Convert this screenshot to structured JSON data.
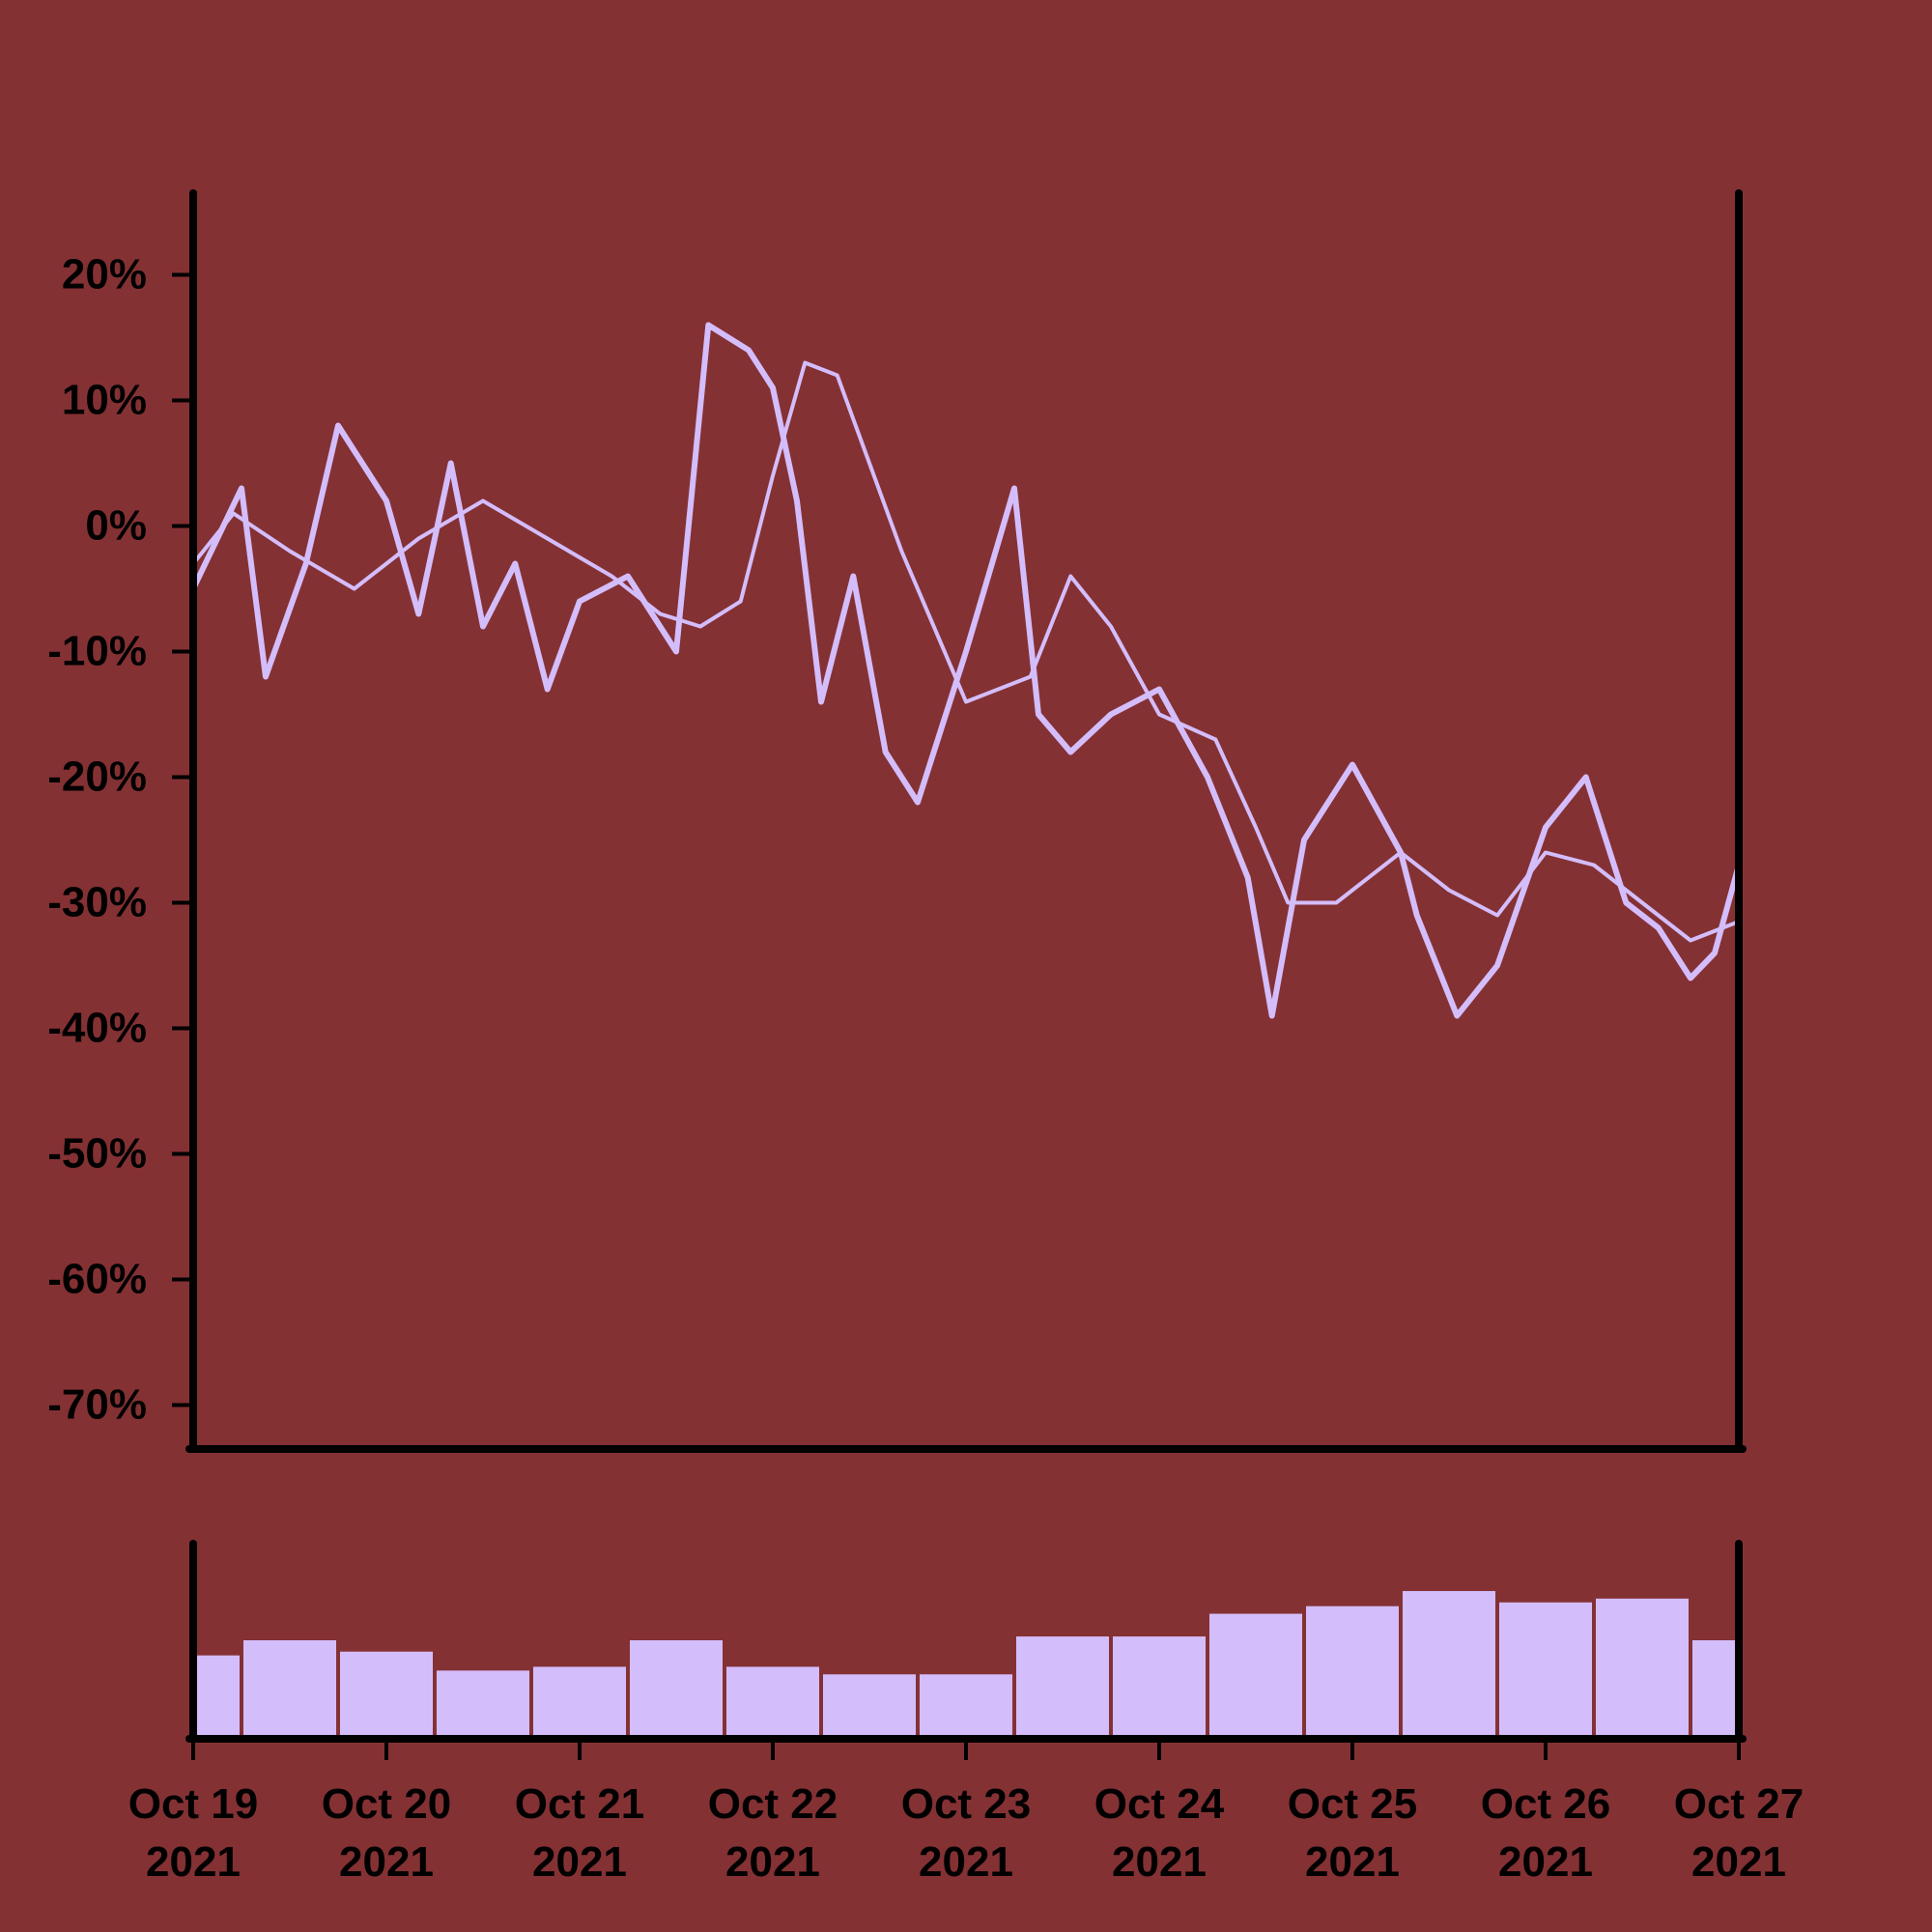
{
  "colors": {
    "background": "#843134",
    "line": "#d4bdfb",
    "volume": "#d4bdfb",
    "axis": "#000000"
  },
  "chart_data": [
    {
      "type": "line",
      "title": "",
      "xlabel": "",
      "ylabel": "",
      "x_range": [
        "2021-10-19",
        "2021-10-27"
      ],
      "ylim": [
        -73.5,
        26.5
      ],
      "y_ticks": [
        20,
        10,
        0,
        -10,
        -20,
        -30,
        -40,
        -50,
        -60,
        -70
      ],
      "y_tick_labels": [
        "20%",
        "10%",
        "0%",
        "-10%",
        "-20%",
        "-30%",
        "-40%",
        "-50%",
        "-60%",
        "-70%"
      ],
      "grid": false,
      "series": [
        {
          "role": "price",
          "x": [
            "2021-10-19 00:00",
            "2021-10-19 06:00",
            "2021-10-19 09:00",
            "2021-10-19 14:00",
            "2021-10-19 18:00",
            "2021-10-20 00:00",
            "2021-10-20 04:00",
            "2021-10-20 08:00",
            "2021-10-20 12:00",
            "2021-10-20 16:00",
            "2021-10-20 20:00",
            "2021-10-21 00:00",
            "2021-10-21 06:00",
            "2021-10-21 12:00",
            "2021-10-21 16:00",
            "2021-10-21 21:00",
            "2021-10-22 00:00",
            "2021-10-22 03:00",
            "2021-10-22 06:00",
            "2021-10-22 10:00",
            "2021-10-22 14:00",
            "2021-10-22 18:00",
            "2021-10-23 00:00",
            "2021-10-23 06:00",
            "2021-10-23 09:00",
            "2021-10-23 13:00",
            "2021-10-23 18:00",
            "2021-10-24 00:00",
            "2021-10-24 06:00",
            "2021-10-24 11:00",
            "2021-10-24 14:00",
            "2021-10-24 18:00",
            "2021-10-25 00:00",
            "2021-10-25 06:00",
            "2021-10-25 08:00",
            "2021-10-25 13:00",
            "2021-10-25 18:00",
            "2021-10-26 00:00",
            "2021-10-26 05:00",
            "2021-10-26 10:00",
            "2021-10-26 14:00",
            "2021-10-26 18:00",
            "2021-10-26 21:00",
            "2021-10-27 00:00"
          ],
          "y": [
            -5,
            3,
            -12,
            -3,
            8,
            2,
            -7,
            5,
            -8,
            -3,
            -13,
            -6,
            -4,
            -10,
            16,
            14,
            11,
            2,
            -14,
            -4,
            -18,
            -22,
            -10,
            3,
            -15,
            -18,
            -15,
            -13,
            -20,
            -28,
            -39,
            -25,
            -19,
            -26,
            -31,
            -39,
            -35,
            -24,
            -20,
            -30,
            -32,
            -36,
            -34,
            -27
          ],
          "name": ""
        },
        {
          "role": "moving-average",
          "x": [
            "2021-10-19 00:00",
            "2021-10-19 05:00",
            "2021-10-19 12:00",
            "2021-10-19 20:00",
            "2021-10-20 04:00",
            "2021-10-20 12:00",
            "2021-10-20 20:00",
            "2021-10-21 04:00",
            "2021-10-21 10:00",
            "2021-10-21 15:00",
            "2021-10-21 20:00",
            "2021-10-22 00:00",
            "2021-10-22 04:00",
            "2021-10-22 08:00",
            "2021-10-22 16:00",
            "2021-10-23 00:00",
            "2021-10-23 08:00",
            "2021-10-23 13:00",
            "2021-10-23 18:00",
            "2021-10-24 00:00",
            "2021-10-24 07:00",
            "2021-10-24 12:00",
            "2021-10-24 16:00",
            "2021-10-24 22:00",
            "2021-10-25 06:00",
            "2021-10-25 12:00",
            "2021-10-25 18:00",
            "2021-10-26 00:00",
            "2021-10-26 06:00",
            "2021-10-26 12:00",
            "2021-10-26 18:00",
            "2021-10-27 00:00"
          ],
          "y": [
            -3,
            1,
            -2,
            -5,
            -1,
            2,
            -1,
            -4,
            -7,
            -8,
            -6,
            4,
            13,
            12,
            -2,
            -14,
            -12,
            -4,
            -8,
            -15,
            -17,
            -24,
            -30,
            -30,
            -26,
            -29,
            -31,
            -26,
            -27,
            -30,
            -33,
            -31.5
          ],
          "name": ""
        }
      ],
      "x_tick_labels": [
        {
          "date": "Oct 19",
          "year": "2021"
        },
        {
          "date": "Oct 20",
          "year": "2021"
        },
        {
          "date": "Oct 21",
          "year": "2021"
        },
        {
          "date": "Oct 22",
          "year": "2021"
        },
        {
          "date": "Oct 23",
          "year": "2021"
        },
        {
          "date": "Oct 24",
          "year": "2021"
        },
        {
          "date": "Oct 25",
          "year": "2021"
        },
        {
          "date": "Oct 26",
          "year": "2021"
        },
        {
          "date": "Oct 27",
          "year": "2021"
        }
      ]
    },
    {
      "type": "bar",
      "role": "volume",
      "title": "",
      "ylim": [
        0,
        1
      ],
      "x_range": [
        "2021-10-19",
        "2021-10-27"
      ],
      "x": [
        "2021-10-19",
        "2021-10-19 12:00",
        "2021-10-20",
        "2021-10-20 12:00",
        "2021-10-21",
        "2021-10-21 12:00",
        "2021-10-22",
        "2021-10-22 12:00",
        "2021-10-23",
        "2021-10-23 12:00",
        "2021-10-24",
        "2021-10-24 12:00",
        "2021-10-25",
        "2021-10-25 12:00",
        "2021-10-26",
        "2021-10-26 12:00",
        "2021-10-27"
      ],
      "values": [
        0.42,
        0.5,
        0.44,
        0.34,
        0.36,
        0.5,
        0.36,
        0.32,
        0.32,
        0.52,
        0.52,
        0.64,
        0.68,
        0.76,
        0.7,
        0.72,
        0.5
      ]
    }
  ]
}
